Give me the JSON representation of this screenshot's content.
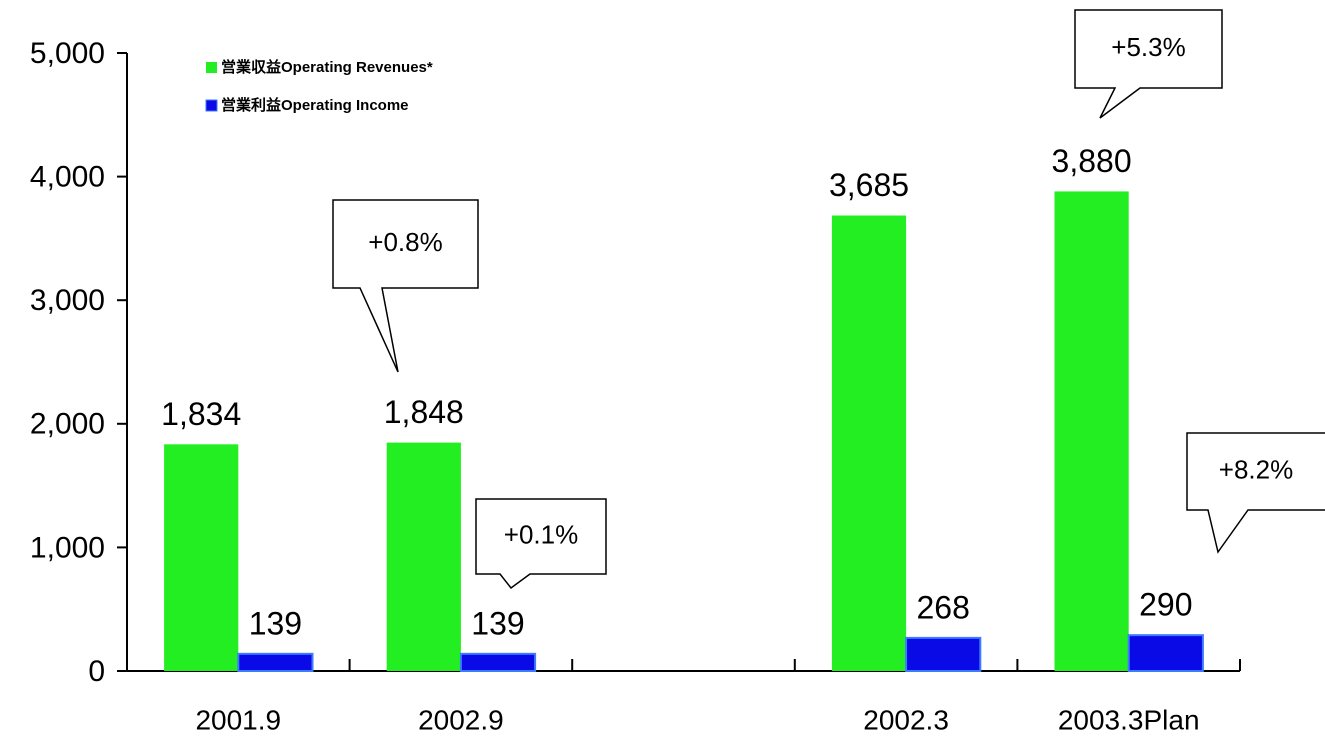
{
  "chart_data": {
    "type": "bar",
    "categories": [
      "2001.9",
      "2002.9",
      null,
      "2002.3",
      "2003.3Plan"
    ],
    "series": [
      {
        "name": "営業収益Operating Revenues*",
        "color": "#22ee22",
        "values": [
          1834,
          1848,
          null,
          3685,
          3880
        ],
        "value_labels": [
          "1,834",
          "1,848",
          null,
          "3,685",
          "3,880"
        ]
      },
      {
        "name": "営業利益Operating Income",
        "color": "#0a0ae6",
        "values": [
          139,
          139,
          null,
          268,
          290
        ]
      }
    ],
    "ylim": [
      0,
      5000
    ],
    "yticks": [
      0,
      {
        "value": 1000,
        "label": "1,000"
      },
      {
        "value": 2000,
        "label": "2,000"
      },
      {
        "value": 3000,
        "label": "3,000"
      },
      {
        "value": 4000,
        "label": "4,000"
      },
      {
        "value": 5000,
        "label": "5,000"
      }
    ],
    "annotations": [
      "+0.8%",
      "+0.1%",
      "+5.3%",
      "+8.2%"
    ],
    "legend": "upper left"
  }
}
